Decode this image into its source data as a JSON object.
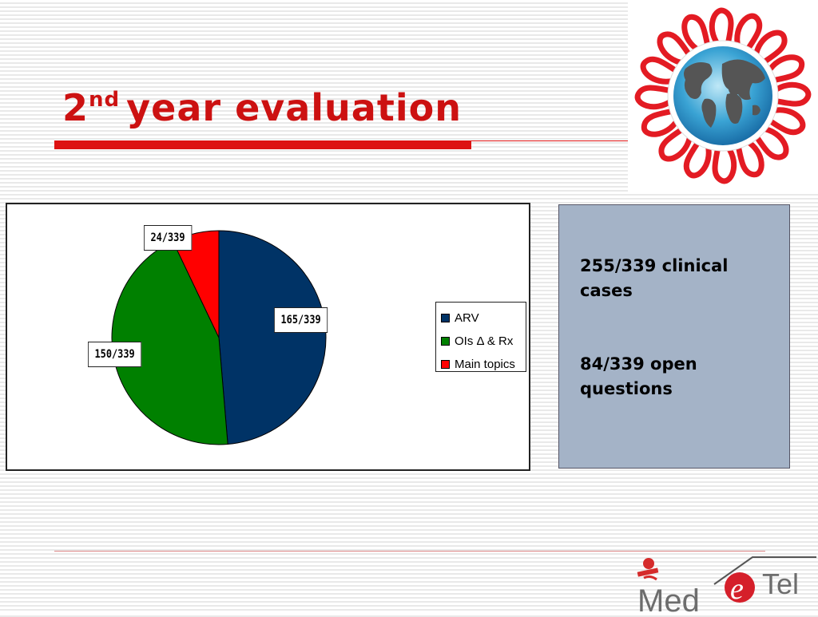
{
  "slide": {
    "title_main": "2",
    "title_sup": "nd",
    "title_rest": "year evaluation"
  },
  "colors": {
    "title_red": "#cc1111",
    "arv": "#003366",
    "ois": "#008000",
    "main_topics": "#ff0000",
    "info_box": "#a4b3c7"
  },
  "chart_data": {
    "type": "pie",
    "categories": [
      "ARV",
      "OIs Δ & Rx",
      "Main topics"
    ],
    "values": [
      165,
      150,
      24
    ],
    "total": 339,
    "data_labels": [
      "165/339",
      "150/339",
      "24/339"
    ],
    "legend": [
      "ARV",
      "OIs Δ & Rx",
      "Main topics"
    ],
    "legend_position": "right"
  },
  "info": {
    "line1": "255/339 clinical cases",
    "line2": "84/339 open questions"
  },
  "brand": {
    "med": "Med",
    "e": "e",
    "tel": "Tel"
  },
  "icons": {
    "logo": "aids-ribbon-globe-logo",
    "brand": "med-e-tel-logo"
  }
}
